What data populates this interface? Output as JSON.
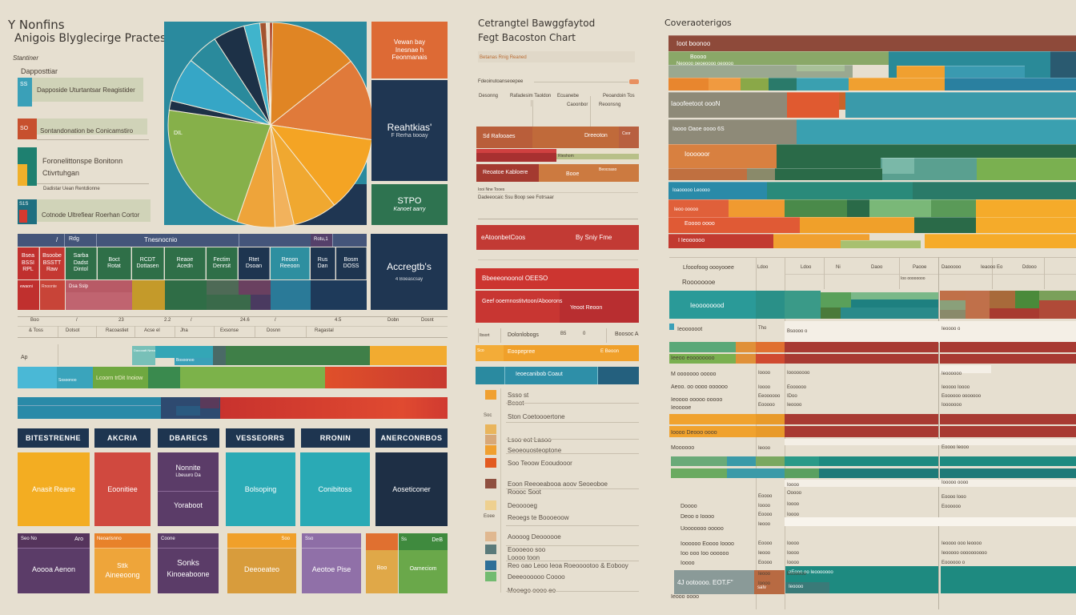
{
  "colors": {
    "background": "#e6dfd0",
    "navy": "#1e3550",
    "teal": "#2e8f98",
    "cyan": "#3cb3c8",
    "green": "#3a7b4e",
    "lime": "#7bb04a",
    "orange": "#e8862e",
    "amber": "#f0a52a",
    "red": "#c8322e",
    "rust": "#b8502e",
    "purple": "#5a3f6b",
    "lavender": "#8e6ea6",
    "brown": "#8f4a3a"
  },
  "left_panel": {
    "title_line1": "Y Nonfins",
    "title_line2": "Anigois Blyglecirge Practes",
    "subtitle": "Stantiner",
    "section_label": "Dapposttiar",
    "legend_items": [
      {
        "badge": "SS",
        "label": "Dapposide Uturtantsar Reagistider",
        "color": "#3aa0b8"
      },
      {
        "badge": "SO",
        "label": "Sontandonation be Conicamstiro",
        "color": "#c7502e"
      },
      {
        "badge": "",
        "label": "Foronelittonspe Bonitonn",
        "label2": "Ctivrtuhgan",
        "color": "#1e8070",
        "color2": "#f0b02a"
      },
      {
        "badge": "",
        "label": "Dadistar Uean Rentdionne",
        "color": ""
      },
      {
        "badge": "S1S",
        "label": "Cotnode Ultrefiear Roerhan Cortor",
        "color": "#1e6f80",
        "color2": "#d43a30"
      }
    ]
  },
  "pie_panel": {
    "small_label": "DIL",
    "side_boxes": [
      {
        "title": "Vewan bay",
        "line2": "Inesnae h",
        "line3": "Feonmanais",
        "color": "#dd6a35"
      },
      {
        "title": "Reahtkias'",
        "sub": "F Rerha tiooay",
        "color": "#1f3652"
      },
      {
        "title": "STPO",
        "sub": "Kanoet aarry",
        "color": "#2e7350"
      }
    ]
  },
  "chart_data": [
    {
      "type": "pie",
      "title": "",
      "slices": [
        {
          "label": "Orange A",
          "value": 14,
          "color": "#e08524"
        },
        {
          "label": "Orange B",
          "value": 13,
          "color": "#e07a3a"
        },
        {
          "label": "Amber A",
          "value": 12,
          "color": "#f4a424"
        },
        {
          "label": "Amber B",
          "value": 7,
          "color": "#f0a830"
        },
        {
          "label": "Light Orange",
          "value": 3,
          "color": "#f2b25c"
        },
        {
          "label": "Amber C",
          "value": 6,
          "color": "#eea43a"
        },
        {
          "label": "Green",
          "value": 22,
          "color": "#86b04a"
        },
        {
          "label": "Navy thin",
          "value": 1.5,
          "color": "#1d3147"
        },
        {
          "label": "Cyan",
          "value": 7,
          "color": "#36a6c6"
        },
        {
          "label": "Teal",
          "value": 5,
          "color": "#2a8a9c"
        },
        {
          "label": "Navy",
          "value": 5,
          "color": "#1d3147"
        },
        {
          "label": "Light Cyan",
          "value": 2.5,
          "color": "#40b4cc"
        },
        {
          "label": "Brown",
          "value": 1,
          "color": "#a35530"
        },
        {
          "label": "Cream",
          "value": 0.5,
          "color": "#e9dfc9"
        },
        {
          "label": "Rust",
          "value": 0.5,
          "color": "#b04a30"
        }
      ]
    }
  ],
  "matrix": {
    "header": [
      "/",
      "Rdg",
      "Tnesnocnio",
      "Rotu,1"
    ],
    "cells": [
      {
        "l1": "Bsea",
        "l2": "BSSI",
        "l3": "RPL",
        "color": "#c0302e"
      },
      {
        "l1": "Bsoobe",
        "l2": "BSSTT",
        "l3": "Raw",
        "color": "#c43832"
      },
      {
        "l1": "Sarba",
        "l2": "Dadst",
        "l3": "Dintol",
        "color": "#2f6f48"
      },
      {
        "l1": "Boct",
        "l2": "Rotat",
        "color": "#2f6f48"
      },
      {
        "l1": "RCDT",
        "l2": "Dottasen",
        "color": "#2f6f48"
      },
      {
        "l1": "Reaoe",
        "l2": "Acedn",
        "color": "#2f6f48"
      },
      {
        "l1": "Fectim",
        "l2": "Denrsit",
        "color": "#2f6f48"
      },
      {
        "l1": "Rtet",
        "l2": "Dsoan",
        "color": "#1e3550"
      },
      {
        "l1": "Reoon",
        "l2": "Reeoon",
        "color": "#2e8fa0"
      },
      {
        "l1": "Rus",
        "l2": "Dan",
        "color": "#1e3550"
      },
      {
        "l1": "Bosm",
        "l2": "DOSS",
        "color": "#1e3550"
      }
    ],
    "sub_row_labels": [
      "ewaoni",
      "Rnoonte",
      "Dsa Sslp"
    ],
    "side_box": {
      "title": "Accregtb's",
      "sub": "4 Boeascsay",
      "color": "#1f3652"
    }
  },
  "ruler": {
    "ticks_top": [
      "Boo",
      "/",
      "23",
      "2.2",
      "/",
      "24.6",
      "/",
      "4.5",
      "Dobn",
      "Dosnt"
    ],
    "ticks_bottom": [
      "& Toss",
      "Dotsot",
      "Racoastiet",
      "Acse el",
      "Jha",
      "Exsonse",
      "Dosnn",
      "Ragastal"
    ],
    "row_label": "Ap"
  },
  "stacked_rows": {
    "row1_labels": [
      "Daoooatt Neeas",
      "Bosoonoo"
    ],
    "row2_labels": [
      "Sosoonoo",
      "Lcoorn trDit Inoiow"
    ]
  },
  "categories": {
    "headers": [
      "BITESTRENHE",
      "AKCRIA",
      "DBARECS",
      "VESSEORRS",
      "RRONIN",
      "ANERCONRBOS"
    ],
    "top_cards": [
      {
        "label": "Anasit Reane",
        "color": "#f3ad22"
      },
      {
        "label": "Eoonitiee",
        "color": "#d0493f"
      },
      {
        "label": "Nonnite",
        "sub": "Lbeuuro Da",
        "label2": "Yoraboot",
        "color": "#5b3c68"
      },
      {
        "label": "Bolsoping",
        "color": "#2aaab5"
      },
      {
        "label": "Conibitoss",
        "color": "#2aaab5"
      },
      {
        "label": "Aoseticoner",
        "color": "#1e2f45"
      }
    ],
    "bottom_cards": [
      {
        "head_left": "Seo No",
        "head_right": "Aro",
        "label": "Aoooa Aenon",
        "head_color": "#55345c",
        "color": "#5b3c68"
      },
      {
        "head_left": "Neoarisnno",
        "head_right": "",
        "label": "Sttk",
        "label2": "Aineeoong",
        "head_color": "#e8822a",
        "color": "#eea53a"
      },
      {
        "head_left": "Coone",
        "head_right": "",
        "label": "Sonks",
        "label2": "Kinoeaboone",
        "head_color": "#5b3c68",
        "color": "#5b3c68"
      },
      {
        "head_left": "",
        "head_right": "Soo",
        "label": "Deeoeateo",
        "head_color": "#f0a02a",
        "color": "#d89c3c"
      },
      {
        "head_left": "Sso",
        "head_right": "",
        "label": "Aeotoe Pise",
        "head_color": "#8e6ea6",
        "color": "#9070a8"
      },
      {
        "head_left": "",
        "head_right": "",
        "label": "Boo",
        "head_color": "#e07030",
        "color": "#e0a848"
      },
      {
        "head_left": "Ss",
        "head_right": "DeB",
        "label": "Oameciom",
        "head_color": "#3f8a3e",
        "color": "#6aa84a"
      }
    ]
  },
  "middle_panel": {
    "title_line1": "Cetrangtel Bawggfaytod",
    "title_line2": "Fegt Bacoston Chart",
    "subtitle": "Betanas Rnig Reaned",
    "slider_label": "Fdeoinutoanseoepee",
    "col_labels": [
      "Desonng",
      "Rafadesim Taoldon",
      "Ecuanebe",
      "Peoandoin Tos"
    ],
    "col_sub": [
      "Caoonbor",
      "Reoonsng"
    ],
    "bar_rows": [
      {
        "left": "Sd Rafooaes",
        "right": "Dreeoton",
        "tag": "Csor"
      },
      {
        "left": "Rieshom",
        "right": ""
      },
      {
        "left": "Reoatoe Kabloere",
        "right": "Booe",
        "tag": "Beocoaso"
      }
    ],
    "notes": [
      "Iooi Nne Tooes",
      "Dadeeocaic Ssu Boop see Fotrsaar"
    ],
    "red_band_1": {
      "left": "eAtoonbetCoos",
      "right": "By Sniy Fme"
    },
    "red_band_2": {
      "title": "Bbeeeonoonol OEESO",
      "left": "Geef ooemnostitvtoon/Aboorons",
      "right": "Yeoot Reoon"
    },
    "table_row": [
      "Ibsort",
      "Dolonlobogs",
      "B5",
      "0",
      "Boosoc A"
    ],
    "amber_row": {
      "left": "Sco",
      "mid": "Eoopepree",
      "right": "E Beoon"
    },
    "teal_row": {
      "label": "Ieoecanibob Coaut"
    },
    "legend": [
      {
        "prefix": "",
        "label": "Ssso st",
        "label2": "Bcoot",
        "color": "#f0a030"
      },
      {
        "prefix": "Soc",
        "label": "Ston Coetoooertone",
        "color": ""
      },
      {
        "prefix": "",
        "label": "",
        "color": "#e9b55c"
      },
      {
        "prefix": "",
        "label": "Lsoo eot Lasoo",
        "color": "#d8a878"
      },
      {
        "prefix": "",
        "label": "Seoeouosteoptone",
        "color": "#f0a030"
      },
      {
        "prefix": "",
        "label": "Soo Teoow Eooudooor",
        "color": "#e25a20"
      },
      {
        "prefix": "",
        "label": "Eoon Reeoeabooa aoov Seoeoboe",
        "label2": "Roooc Soot",
        "color": "#8f5040"
      },
      {
        "prefix": "",
        "label": "Deooooeg",
        "color": "#eed090"
      },
      {
        "prefix": "Eoee",
        "label": "Reoegs te Boooeoow",
        "color": ""
      },
      {
        "prefix": "",
        "label": "Aoooog Deoooooe",
        "color": "#e0b890"
      },
      {
        "prefix": "",
        "label": "Eoooeoo soo",
        "label2": "Loooo toon",
        "color": "#5a7a7a"
      },
      {
        "prefix": "",
        "label": "Reo oao Leoo Ieoa Roeooootoo & Eobooy",
        "color": "#2e6f98"
      },
      {
        "prefix": "",
        "label": "Deeeoooooo Coooo",
        "color": "#72bb70"
      },
      {
        "prefix": "",
        "label": "Mooego oooo eo",
        "color": ""
      }
    ]
  },
  "right_panel": {
    "title": "Coveraoterigos",
    "gantt_labels": [
      "Ioot boonoo",
      "Boooo",
      "Neoooo oeoeoooo oeoooo",
      "Iaoofeetoot oooN",
      "Iaooo Oaoe oooo 6S",
      "Ioooooor",
      "Ioaooooo Leoooo",
      "Ieoo ooooo",
      "Eoooo oooo",
      "I Ieoooooo"
    ],
    "table_header": [
      "Lfooofoog oooyooee",
      "Ldoo",
      "Ldoo",
      "Ni",
      "Daoo",
      "Paooe",
      "Daooooo",
      "Ieaooo Eo",
      "Ddooo"
    ],
    "table_sub": [
      "Roooooooe",
      "Ioo oooooooo"
    ],
    "teal_row_label": "Ieoooooood",
    "row_labels": [
      "Ieoooooot",
      "",
      "Ieeoo eoooooooo",
      "M ooooooo ooooo",
      "Aeoo. oo oooo oooooo",
      "Ieoooo ooooo ooooo",
      "Ieooooe",
      "Ioooo Deooo oooo",
      "Moooooo",
      "Doooo",
      "Deoo o Ioooo",
      "Uooooooo ooooo",
      "Ioooooo Eoooo Ioooo",
      "Ioo ooo Ioo oooooo",
      "Ioooo",
      "Ieooo oooo"
    ],
    "col2": [
      "Tho",
      "Ioooo",
      "Ioooo",
      "Eeoooooo",
      "Eooooo",
      "Ieooo",
      "Eoooo",
      "Ioooo",
      "Eoooo",
      "Ieooo",
      "Eoooo",
      "Ieooo",
      "Eoooo",
      "Ieooo",
      "Ioooo"
    ],
    "col3": [
      "Bsoooo o",
      "Ioooooooo",
      "Eoooooo",
      "IDoo",
      "Ieoooo",
      "Ioooo",
      "Ooooo",
      "Ioooo",
      "Ioooo",
      "Ioooo",
      "Ioooo",
      "Ioooo",
      "Eoooooo"
    ],
    "col4": [
      "Ieoooo o",
      "Ieoooooo",
      "Ieoooo Ioooo",
      "Eoooooo ooooooo",
      "Iooooooo",
      "Eoooo Ieooo",
      "Iooooo oooo",
      "Eoooo Iooo",
      "Eoooooo",
      "Ieoooo ooo Ieoooo",
      "Ieooooo oooooooooo",
      "Eoooooo o"
    ],
    "footer_left": "4J ootoooo. EOT.F\"",
    "footer_mid": "saIv",
    "footer_right1": "oEooo oo Ieooooooo",
    "footer_right2": "Ieoooo"
  }
}
